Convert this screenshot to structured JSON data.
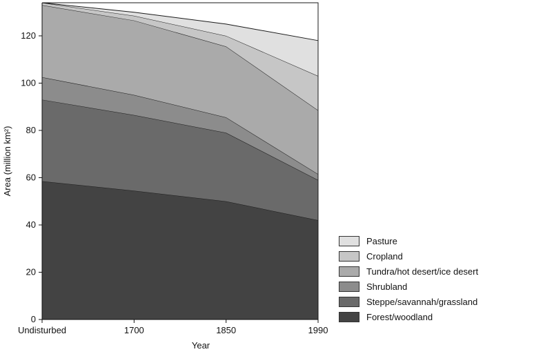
{
  "chart_data": {
    "type": "area",
    "stacked": true,
    "categories": [
      "Undisturbed",
      "1700",
      "1850",
      "1990"
    ],
    "xlabel": "Year",
    "ylabel": "Area (million km²)",
    "ylim": [
      0,
      134
    ],
    "yticks": [
      0,
      20,
      40,
      60,
      80,
      100,
      120
    ],
    "grid": false,
    "legend_position": "bottom-right",
    "series": [
      {
        "name": "Forest/woodland",
        "values": [
          58.5,
          54.5,
          50,
          42
        ],
        "color": "#434343"
      },
      {
        "name": "Steppe/savannah/grassland",
        "values": [
          34.5,
          32,
          29,
          17
        ],
        "color": "#6a6a6a"
      },
      {
        "name": "Shrubland",
        "values": [
          9.5,
          8.5,
          6.5,
          2.5
        ],
        "color": "#8c8c8c"
      },
      {
        "name": "Tundra/hot desert/ice desert",
        "values": [
          30.5,
          31.5,
          30,
          27
        ],
        "color": "#aaaaaa"
      },
      {
        "name": "Cropland",
        "values": [
          1,
          2,
          4.5,
          14.5
        ],
        "color": "#c6c6c6"
      },
      {
        "name": "Pasture",
        "values": [
          0,
          1.5,
          5,
          15
        ],
        "color": "#e0e0e0"
      }
    ]
  }
}
